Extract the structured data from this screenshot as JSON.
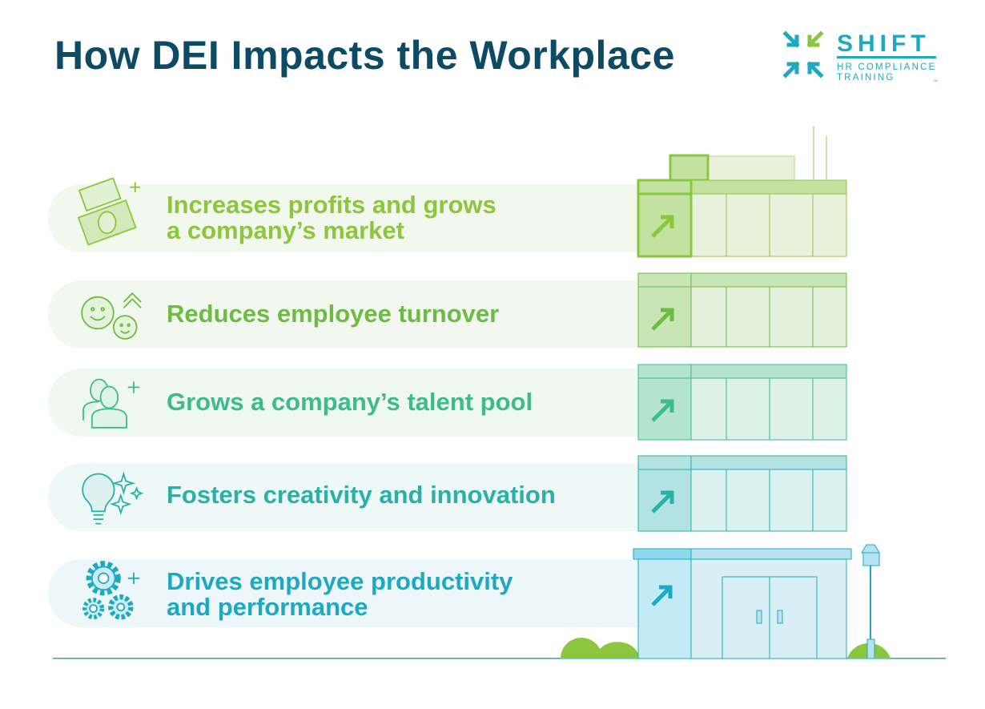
{
  "title": "How DEI Impacts the Workplace",
  "logo": {
    "name": "SHIFT",
    "tagline_1": "HR COMPLIANCE",
    "tagline_2": "TRAINING",
    "mark": "TM"
  },
  "colors": {
    "title": "#0d4a63",
    "logo_teal": "#1fa9c0",
    "logo_green": "#8cc63f"
  },
  "items": [
    {
      "line1": "Increases profits and grows",
      "line2": "a company’s market",
      "icon": "money-icon",
      "color": "#8cc63f"
    },
    {
      "line1": "Reduces employee turnover",
      "line2": "",
      "icon": "smiley-faces-icon",
      "color": "#6dbb45"
    },
    {
      "line1": "Grows a company’s talent pool",
      "line2": "",
      "icon": "people-plus-icon",
      "color": "#3dbb8a"
    },
    {
      "line1": "Fosters creativity and innovation",
      "line2": "",
      "icon": "lightbulb-icon",
      "color": "#2ab0a6"
    },
    {
      "line1": "Drives employee productivity",
      "line2": "and performance",
      "icon": "gears-icon",
      "color": "#1fa9c0"
    }
  ]
}
